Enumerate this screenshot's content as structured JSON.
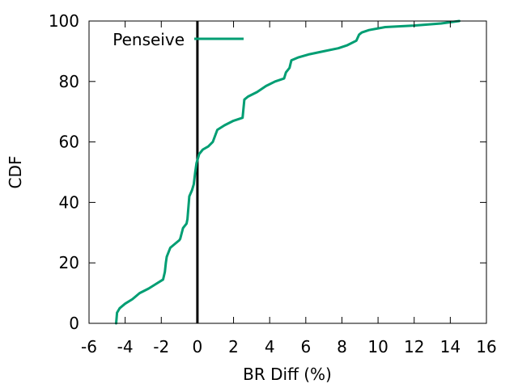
{
  "chart_data": {
    "type": "line",
    "xlabel": "BR Diff (%)",
    "ylabel": "CDF",
    "xlim": [
      -6,
      16
    ],
    "ylim": [
      0,
      100
    ],
    "xticks": [
      -6,
      -4,
      -2,
      0,
      2,
      4,
      6,
      8,
      10,
      12,
      14,
      16
    ],
    "yticks": [
      0,
      20,
      40,
      60,
      80,
      100
    ],
    "grid": false,
    "legend_position": "top-left",
    "reference_line_x": 0,
    "series": [
      {
        "name": "Penseive",
        "color": "#009e73",
        "x": [
          -4.5,
          -4.45,
          -4.3,
          -4.0,
          -3.6,
          -3.2,
          -2.7,
          -2.3,
          -1.9,
          -1.8,
          -1.75,
          -1.7,
          -1.5,
          -1.2,
          -1.0,
          -0.95,
          -0.8,
          -0.6,
          -0.55,
          -0.45,
          -0.3,
          -0.2,
          -0.12,
          -0.05,
          0.1,
          0.3,
          0.6,
          0.85,
          1.1,
          1.5,
          2.0,
          2.5,
          2.6,
          2.8,
          3.3,
          3.8,
          4.3,
          4.8,
          4.9,
          5.1,
          5.2,
          5.6,
          6.2,
          7.0,
          7.8,
          8.3,
          8.8,
          8.95,
          9.1,
          9.5,
          10.4,
          12.0,
          13.5,
          14.5
        ],
        "y": [
          0,
          3.5,
          5,
          6.5,
          8,
          10,
          11.5,
          13,
          14.5,
          17,
          20,
          22,
          25,
          26.5,
          27.5,
          28,
          31.5,
          33,
          34.5,
          42,
          44,
          46,
          50,
          53,
          56,
          57.5,
          58.5,
          60,
          64,
          65.5,
          67,
          68,
          74,
          75,
          76.5,
          78.5,
          80,
          81,
          83,
          84.5,
          87,
          88,
          89,
          90,
          91,
          92,
          93.5,
          95.5,
          96.2,
          97,
          98,
          98.5,
          99.2,
          100
        ]
      }
    ]
  }
}
